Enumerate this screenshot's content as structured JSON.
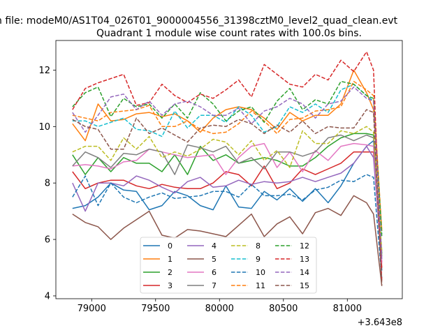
{
  "figure": {
    "suptitle": "n file: modeM0/AS1T04_026T01_9000004556_31398cztM0_level2_quad_clean.evt"
  },
  "chart_data": {
    "type": "line",
    "title": "Quadrant 1 module wise count rates with 100.0s bins.",
    "xlabel": "",
    "ylabel": "",
    "x_offset_label": "+3.643e8",
    "xlim": [
      78720,
      81430
    ],
    "ylim": [
      3.9,
      13.05
    ],
    "xticks": [
      79000,
      79500,
      80000,
      80500,
      81000
    ],
    "xtick_labels": [
      "79000",
      "79500",
      "80000",
      "80500",
      "81000"
    ],
    "yticks": [
      4,
      6,
      8,
      10,
      12
    ],
    "ytick_labels": [
      "4",
      "6",
      "8",
      "10",
      "12"
    ],
    "grid": false,
    "legend": {
      "location": "lower-center",
      "columns": 4
    },
    "x": [
      78850,
      78950,
      79050,
      79150,
      79250,
      79350,
      79450,
      79550,
      79650,
      79750,
      79850,
      79950,
      80050,
      80150,
      80250,
      80350,
      80450,
      80550,
      80650,
      80750,
      80850,
      80950,
      81050,
      81150,
      81205,
      81270
    ],
    "series": [
      {
        "name": "0",
        "color": "#1f77b4",
        "dash": "solid",
        "values": [
          7.1,
          7.2,
          7.5,
          8.0,
          7.75,
          7.7,
          7.05,
          7.2,
          7.7,
          7.55,
          7.2,
          7.05,
          7.9,
          7.15,
          7.1,
          7.7,
          7.4,
          7.8,
          7.35,
          7.8,
          7.3,
          7.9,
          8.7,
          9.3,
          9.5,
          4.9
        ]
      },
      {
        "name": "1",
        "color": "#ff7f0e",
        "dash": "solid",
        "values": [
          10.1,
          9.5,
          10.8,
          10.2,
          10.25,
          10.45,
          10.5,
          10.35,
          10.45,
          10.2,
          9.8,
          10.3,
          10.6,
          10.7,
          10.6,
          10.3,
          9.9,
          10.5,
          10.2,
          10.4,
          10.4,
          10.8,
          12.0,
          11.2,
          10.6,
          6.3
        ]
      },
      {
        "name": "2",
        "color": "#2ca02c",
        "dash": "solid",
        "values": [
          9.0,
          8.3,
          8.9,
          8.4,
          8.9,
          8.7,
          8.7,
          8.4,
          9.0,
          8.3,
          9.3,
          8.8,
          9.0,
          8.7,
          8.8,
          8.9,
          8.8,
          8.6,
          8.6,
          8.9,
          9.3,
          9.6,
          9.75,
          9.75,
          9.7,
          5.5
        ]
      },
      {
        "name": "3",
        "color": "#d62728",
        "dash": "solid",
        "values": [
          8.4,
          7.8,
          8.0,
          8.1,
          8.1,
          7.9,
          7.8,
          7.95,
          7.85,
          7.8,
          7.8,
          8.0,
          8.4,
          8.3,
          7.9,
          8.6,
          7.8,
          8.0,
          8.5,
          8.3,
          8.5,
          8.7,
          9.1,
          9.1,
          9.1,
          5.0
        ]
      },
      {
        "name": "4",
        "color": "#9467bd",
        "dash": "solid",
        "values": [
          8.0,
          7.0,
          8.0,
          8.0,
          7.9,
          8.25,
          8.1,
          7.85,
          7.65,
          8.05,
          8.2,
          7.85,
          7.9,
          8.1,
          7.95,
          8.05,
          8.0,
          8.05,
          8.2,
          8.05,
          8.2,
          8.35,
          8.7,
          9.3,
          8.9,
          5.2
        ]
      },
      {
        "name": "5",
        "color": "#8c564b",
        "dash": "solid",
        "values": [
          6.9,
          6.6,
          6.45,
          6.0,
          6.4,
          6.7,
          7.0,
          6.15,
          6.05,
          6.35,
          6.3,
          6.2,
          6.1,
          6.5,
          6.9,
          6.1,
          6.55,
          6.8,
          6.2,
          6.95,
          7.1,
          6.85,
          7.55,
          7.3,
          6.9,
          4.35
        ]
      },
      {
        "name": "6",
        "color": "#e377c2",
        "dash": "solid",
        "values": [
          8.6,
          8.65,
          8.6,
          8.5,
          8.75,
          8.8,
          9.2,
          9.1,
          9.0,
          8.9,
          8.95,
          9.0,
          8.3,
          8.9,
          9.3,
          9.4,
          8.55,
          9.1,
          8.4,
          9.15,
          8.8,
          9.3,
          9.4,
          9.35,
          9.3,
          5.15
        ]
      },
      {
        "name": "7",
        "color": "#7f7f7f",
        "dash": "solid",
        "values": [
          8.6,
          9.1,
          8.9,
          8.55,
          9.05,
          9.0,
          9.2,
          9.1,
          8.3,
          9.35,
          9.25,
          9.1,
          9.3,
          8.7,
          8.9,
          8.5,
          9.1,
          9.1,
          8.95,
          9.1,
          9.6,
          9.7,
          9.5,
          9.7,
          9.6,
          5.4
        ]
      },
      {
        "name": "8",
        "color": "#bcbd22",
        "dash": "dashed",
        "values": [
          9.1,
          9.3,
          9.3,
          8.8,
          9.6,
          9.2,
          9.65,
          8.9,
          9.1,
          8.95,
          9.2,
          9.55,
          9.45,
          9.0,
          9.5,
          8.8,
          9.15,
          8.55,
          9.85,
          9.4,
          9.4,
          9.85,
          9.75,
          10.0,
          9.8,
          5.6
        ]
      },
      {
        "name": "9",
        "color": "#17becf",
        "dash": "dashed",
        "values": [
          10.2,
          10.2,
          10.0,
          10.15,
          10.3,
          9.9,
          9.85,
          9.65,
          10.55,
          9.95,
          10.4,
          10.4,
          10.15,
          10.7,
          10.4,
          9.8,
          10.0,
          10.7,
          10.5,
          10.8,
          10.5,
          11.3,
          11.5,
          11.1,
          10.9,
          6.2
        ]
      },
      {
        "name": "10",
        "color": "#1f77b4",
        "dash": "dashed",
        "values": [
          7.5,
          8.25,
          7.2,
          8.0,
          7.5,
          7.3,
          7.5,
          7.65,
          7.45,
          7.5,
          7.55,
          7.7,
          7.7,
          7.5,
          7.95,
          7.55,
          7.55,
          7.6,
          7.4,
          7.75,
          7.85,
          8.1,
          8.05,
          8.3,
          8.2,
          4.6
        ]
      },
      {
        "name": "11",
        "color": "#ff7f0e",
        "dash": "dashed",
        "values": [
          10.4,
          10.3,
          10.2,
          10.5,
          10.55,
          10.6,
          10.75,
          10.0,
          10.0,
          10.2,
          9.9,
          9.75,
          9.8,
          10.1,
          10.55,
          10.2,
          9.75,
          10.25,
          10.3,
          10.55,
          10.6,
          10.7,
          11.6,
          11.3,
          11.1,
          6.3
        ]
      },
      {
        "name": "12",
        "color": "#2ca02c",
        "dash": "dashed",
        "values": [
          10.7,
          11.2,
          11.4,
          10.35,
          11.0,
          10.7,
          10.8,
          10.3,
          10.8,
          10.3,
          11.2,
          10.8,
          10.2,
          10.55,
          10.7,
          10.15,
          10.9,
          11.35,
          10.6,
          10.95,
          10.8,
          11.6,
          11.5,
          11.1,
          11.0,
          6.1
        ]
      },
      {
        "name": "13",
        "color": "#d62728",
        "dash": "dashed",
        "values": [
          10.6,
          11.35,
          11.55,
          11.7,
          11.85,
          10.75,
          10.85,
          11.5,
          11.1,
          10.85,
          11.15,
          11.0,
          11.3,
          11.65,
          11.05,
          12.2,
          11.85,
          11.5,
          11.4,
          11.85,
          11.65,
          12.35,
          11.95,
          12.65,
          12.0,
          4.5
        ]
      },
      {
        "name": "14",
        "color": "#9467bd",
        "dash": "dashed",
        "values": [
          10.5,
          9.8,
          10.4,
          11.05,
          11.15,
          10.6,
          10.9,
          10.4,
          10.8,
          10.9,
          10.7,
          10.4,
          10.4,
          10.65,
          10.1,
          10.55,
          10.7,
          11.0,
          10.8,
          10.3,
          10.8,
          10.9,
          11.4,
          11.0,
          10.9,
          5.3
        ]
      },
      {
        "name": "15",
        "color": "#8c564b",
        "dash": "dashed",
        "values": [
          10.25,
          10.0,
          9.9,
          9.2,
          9.2,
          10.3,
          9.75,
          9.95,
          9.7,
          9.45,
          9.95,
          10.05,
          10.0,
          10.25,
          10.1,
          9.75,
          10.05,
          9.8,
          10.2,
          9.75,
          10.0,
          9.95,
          9.95,
          10.6,
          10.5,
          4.4
        ]
      }
    ]
  }
}
